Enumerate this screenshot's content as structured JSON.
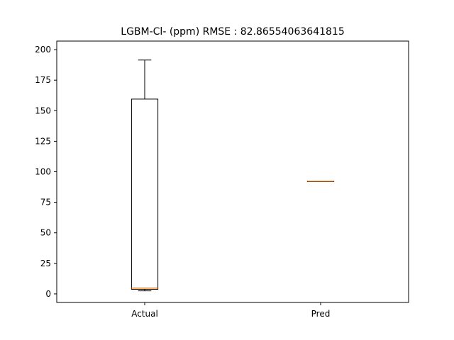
{
  "chart_data": {
    "type": "box",
    "title": "LGBM-Cl- (ppm) RMSE : 82.86554063641815",
    "xlabel": "",
    "ylabel": "",
    "categories": [
      "Actual",
      "Pred"
    ],
    "boxes": [
      {
        "name": "Actual",
        "whisker_low": 2.5,
        "q1": 3.8,
        "median": 4.8,
        "q3": 159.5,
        "whisker_high": 191.5
      },
      {
        "name": "Pred",
        "whisker_low": 92.2,
        "q1": 92.2,
        "median": 92.2,
        "q3": 92.2,
        "whisker_high": 92.2
      }
    ],
    "ylim": [
      -7,
      207
    ],
    "yticks": [
      0,
      25,
      50,
      75,
      100,
      125,
      150,
      175,
      200
    ],
    "grid": false,
    "colors": {
      "box": "#000000",
      "median": "#ff7f0e",
      "axes": "#000000"
    }
  }
}
